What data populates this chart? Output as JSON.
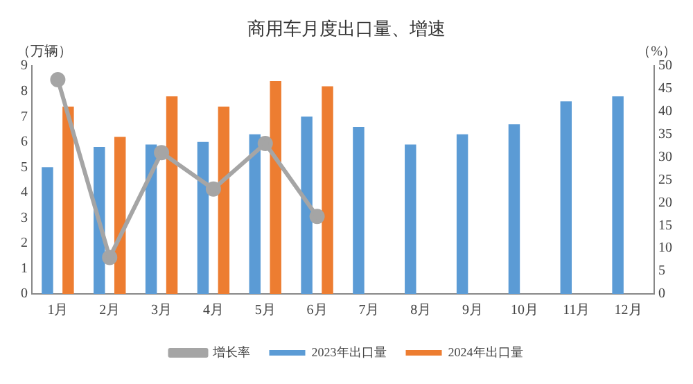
{
  "chart_data": {
    "type": "bar",
    "title": "商用车月度出口量、增速",
    "ylabel": "（万辆）",
    "y2label": "（%）",
    "categories": [
      "1月",
      "2月",
      "3月",
      "4月",
      "5月",
      "6月",
      "7月",
      "8月",
      "9月",
      "10月",
      "11月",
      "12月"
    ],
    "series": [
      {
        "name": "2023年出口量",
        "color": "#5b9bd5",
        "values": [
          5.0,
          5.8,
          5.9,
          6.0,
          6.3,
          7.0,
          6.6,
          5.9,
          6.3,
          6.7,
          7.6,
          7.8
        ]
      },
      {
        "name": "2024年出口量",
        "color": "#ed7d31",
        "values": [
          7.4,
          6.2,
          7.8,
          7.4,
          8.4,
          8.2,
          null,
          null,
          null,
          null,
          null,
          null
        ]
      },
      {
        "name": "增长率",
        "type": "line",
        "axis": "y2",
        "color": "#a5a5a5",
        "marker": "circle",
        "values": [
          47,
          8,
          31,
          23,
          33,
          17,
          null,
          null,
          null,
          null,
          null,
          null
        ]
      }
    ],
    "ylim": [
      0,
      9
    ],
    "yticks": [
      0,
      1,
      2,
      3,
      4,
      5,
      6,
      7,
      8,
      9
    ],
    "y2lim": [
      0,
      50
    ],
    "y2ticks": [
      0,
      5,
      10,
      15,
      20,
      25,
      30,
      35,
      40,
      45,
      50
    ],
    "grid": false,
    "legend": "bottom"
  }
}
